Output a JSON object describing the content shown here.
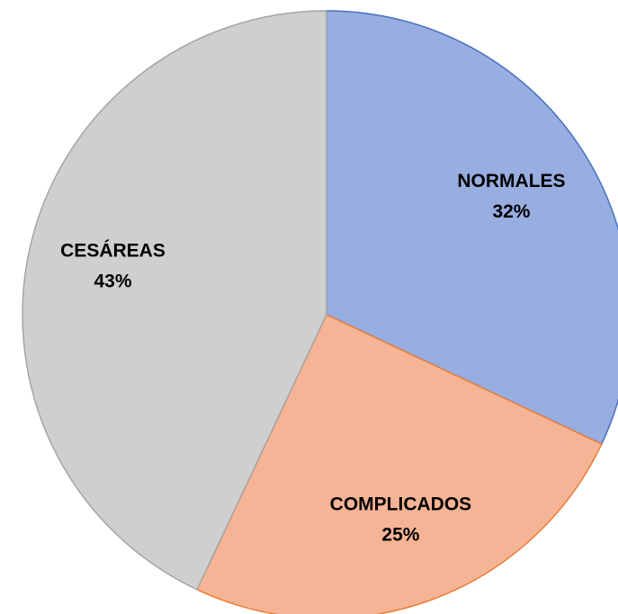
{
  "chart_data": {
    "type": "pie",
    "categories": [
      "NORMALES",
      "COMPLICADOS",
      "CESÁREAS"
    ],
    "values": [
      32,
      25,
      43
    ],
    "value_labels": [
      "32%",
      "25%",
      "43%"
    ],
    "colors": [
      "#98ade0",
      "#f6b496",
      "#cfcfcf"
    ],
    "edge_colors": [
      "#4472c4",
      "#ed7d31",
      "#a5a5a5"
    ]
  }
}
